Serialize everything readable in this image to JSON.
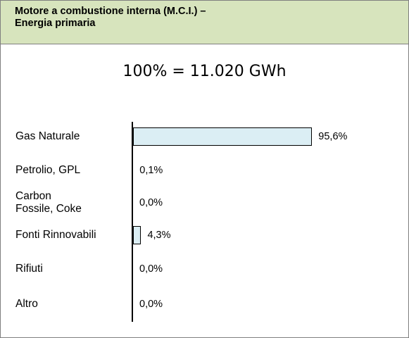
{
  "chart_data": {
    "type": "bar",
    "orientation": "horizontal",
    "title": "Motore a combustione interna (M.C.I.) –\nEnergia primaria",
    "subtitle": "100% = 11.020 GWh",
    "categories": [
      "Gas Naturale",
      "Petrolio, GPL",
      "Carbon\nFossile, Coke",
      "Fonti Rinnovabili",
      "Rifiuti",
      "Altro"
    ],
    "values": [
      95.6,
      0.1,
      0,
      4.3,
      0,
      0
    ],
    "value_labels": [
      "95,6%",
      "0,1%",
      "0,0%",
      "4,3%",
      "0,0%",
      "0,0%"
    ],
    "color": "#dbeef4"
  }
}
